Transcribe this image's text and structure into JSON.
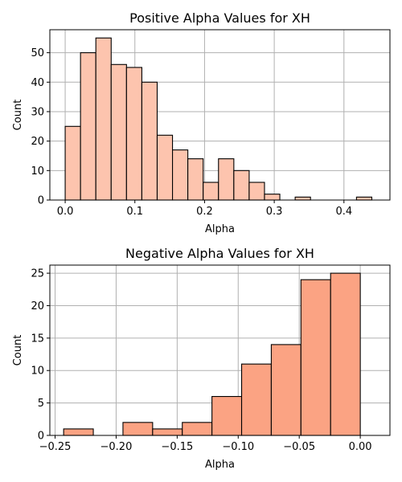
{
  "chart_data": [
    {
      "type": "bar",
      "title": "Positive Alpha Values for XH",
      "xlabel": "Alpha",
      "ylabel": "Count",
      "color": "#fdc4ae",
      "xlim": [
        -0.022,
        0.466
      ],
      "ylim": [
        0,
        57.8
      ],
      "xticks": [
        0.0,
        0.1,
        0.2,
        0.3,
        0.4
      ],
      "xtick_labels": [
        "0.0",
        "0.1",
        "0.2",
        "0.3",
        "0.4"
      ],
      "yticks": [
        0,
        10,
        20,
        30,
        40,
        50
      ],
      "ytick_labels": [
        "0",
        "10",
        "20",
        "30",
        "40",
        "50"
      ],
      "grid": true,
      "bin_edges": [
        0.0,
        0.022,
        0.044,
        0.066,
        0.088,
        0.11,
        0.132,
        0.154,
        0.176,
        0.198,
        0.22,
        0.242,
        0.264,
        0.286,
        0.308,
        0.33,
        0.352,
        0.374,
        0.396,
        0.418,
        0.44
      ],
      "values": [
        25,
        50,
        55,
        46,
        45,
        40,
        22,
        17,
        14,
        6,
        14,
        10,
        6,
        2,
        0,
        1,
        0,
        0,
        0,
        1
      ]
    },
    {
      "type": "bar",
      "title": "Negative Alpha Values for XH",
      "xlabel": "Alpha",
      "ylabel": "Count",
      "color": "#fba383",
      "xlim": [
        -0.2543,
        0.0243
      ],
      "ylim": [
        0,
        26.25
      ],
      "xticks": [
        -0.25,
        -0.2,
        -0.15,
        -0.1,
        -0.05,
        0.0
      ],
      "xtick_labels": [
        "−0.25",
        "−0.20",
        "−0.15",
        "−0.10",
        "−0.05",
        "0.00"
      ],
      "yticks": [
        0,
        5,
        10,
        15,
        20,
        25
      ],
      "ytick_labels": [
        "0",
        "5",
        "10",
        "15",
        "20",
        "25"
      ],
      "grid": true,
      "bin_edges": [
        -0.243,
        -0.2187,
        -0.1944,
        -0.1701,
        -0.1458,
        -0.1215,
        -0.0972,
        -0.0729,
        -0.0486,
        -0.0243,
        0.0
      ],
      "values": [
        1,
        0,
        2,
        1,
        2,
        6,
        11,
        14,
        24,
        25
      ]
    }
  ]
}
